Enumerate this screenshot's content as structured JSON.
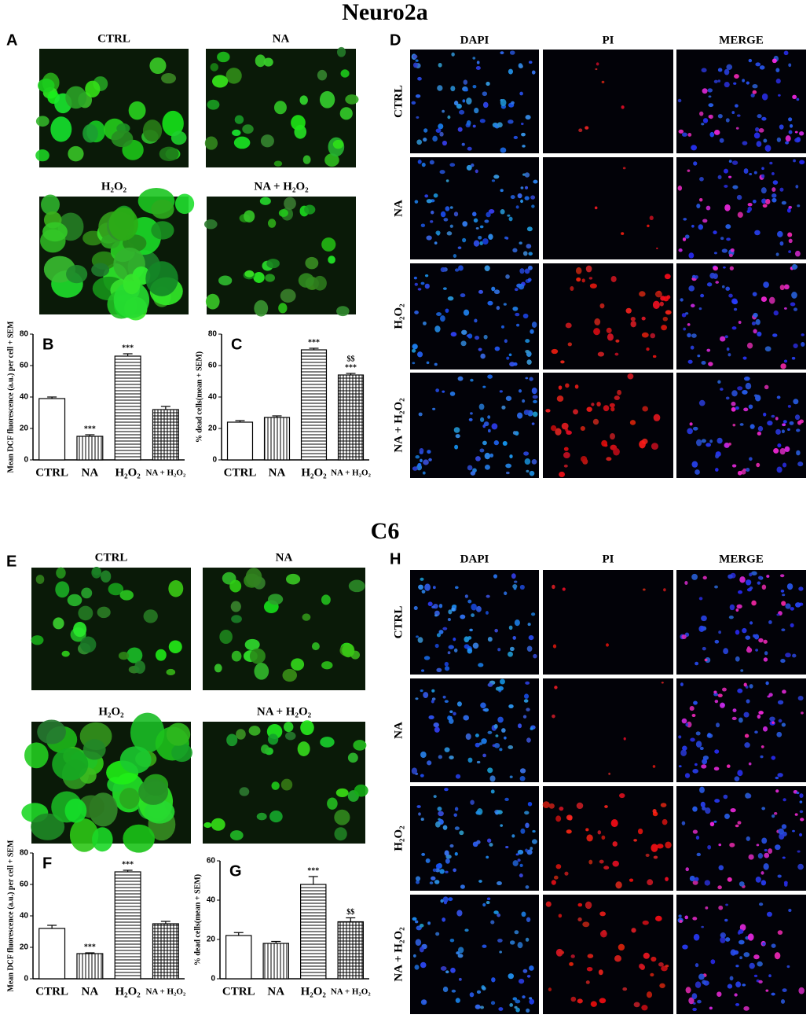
{
  "neuro2a": {
    "title": "Neuro2a",
    "dcf": {
      "letter": "A",
      "labels": [
        "CTRL",
        "NA",
        "H₂O₂",
        "NA + H₂O₂"
      ]
    },
    "pi": {
      "letter": "D",
      "columns": [
        "DAPI",
        "PI",
        "MERGE"
      ],
      "rows": [
        "CTRL",
        "NA",
        "H₂O₂",
        "NA + H₂O₂"
      ]
    }
  },
  "c6": {
    "title": "C6",
    "dcf": {
      "letter": "E",
      "labels": [
        "CTRL",
        "NA",
        "H₂O₂",
        "NA + H₂O₂"
      ]
    },
    "pi": {
      "letter": "H",
      "columns": [
        "DAPI",
        "PI",
        "MERGE"
      ],
      "rows": [
        "CTRL",
        "NA",
        "H₂O₂",
        "NA + H₂O₂"
      ]
    }
  },
  "chart_data": [
    {
      "type": "bar",
      "label": "B",
      "ylabel": "Mean DCF fluorescence (a.u.) per cell + SEM",
      "categories": [
        "CTRL",
        "NA",
        "H₂O₂",
        "NA + H₂O₂"
      ],
      "values": [
        39,
        15,
        66,
        32
      ],
      "errors": [
        1,
        1,
        1.5,
        2
      ],
      "annotations": [
        null,
        [
          "***"
        ],
        [
          "***"
        ],
        null
      ],
      "color": "#000000",
      "ylim": [
        0,
        80
      ],
      "yticks": [
        0,
        20,
        40,
        60,
        80
      ]
    },
    {
      "type": "bar",
      "label": "C",
      "ylabel": "% dead cells(mean + SEM)",
      "categories": [
        "CTRL",
        "NA",
        "H₂O₂",
        "NA + H₂O₂"
      ],
      "values": [
        24,
        27,
        70,
        54
      ],
      "errors": [
        1,
        1,
        1,
        1
      ],
      "annotations": [
        null,
        null,
        [
          "***"
        ],
        [
          "$$",
          "***"
        ]
      ],
      "color": "#000000",
      "ylim": [
        0,
        80
      ],
      "yticks": [
        0,
        20,
        40,
        60,
        80
      ]
    },
    {
      "type": "bar",
      "label": "F",
      "ylabel": "Mean DCF fluorescence (a.u.) per cell + SEM",
      "categories": [
        "CTRL",
        "NA",
        "H₂O₂",
        "NA + H₂O₂"
      ],
      "values": [
        32,
        16,
        68,
        35
      ],
      "errors": [
        2,
        0.5,
        1,
        1.5
      ],
      "annotations": [
        null,
        [
          "***"
        ],
        [
          "***"
        ],
        null
      ],
      "color": "#000000",
      "ylim": [
        0,
        80
      ],
      "yticks": [
        0,
        20,
        40,
        60,
        80
      ]
    },
    {
      "type": "bar",
      "label": "G",
      "ylabel": "% dead cells(mean + SEM)",
      "categories": [
        "CTRL",
        "NA",
        "H₂O₂",
        "NA + H₂O₂"
      ],
      "values": [
        22,
        18,
        48,
        29
      ],
      "errors": [
        1.5,
        1,
        4,
        2
      ],
      "annotations": [
        null,
        null,
        [
          "***"
        ],
        [
          "$$"
        ]
      ],
      "color": "#000000",
      "ylim": [
        0,
        60
      ],
      "yticks": [
        0,
        20,
        40,
        60
      ]
    }
  ]
}
